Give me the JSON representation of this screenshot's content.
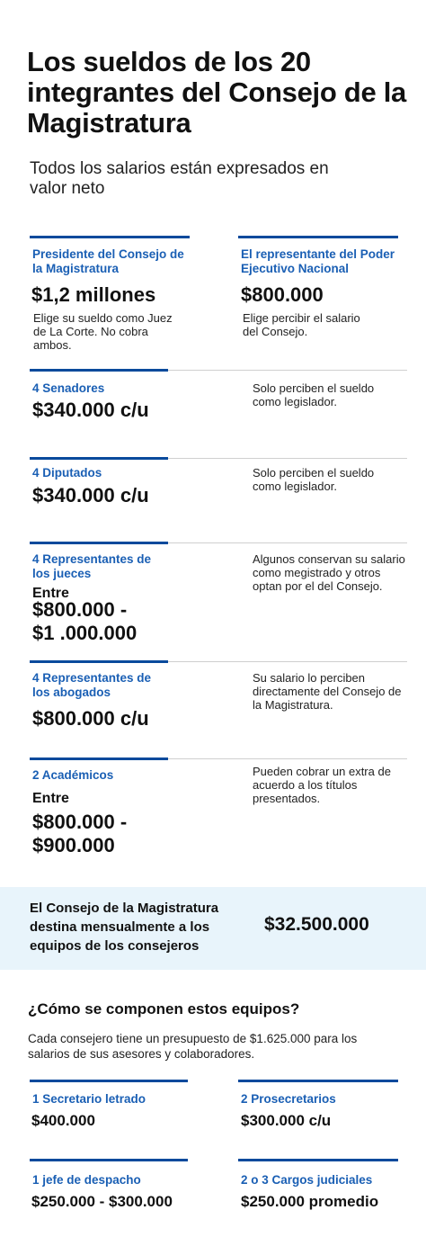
{
  "header": {
    "title": "Los sueldos de los 20 integrantes del Consejo de la Magistratura",
    "subtitle": "Todos los salarios están expresados en valor neto"
  },
  "blocks": {
    "presidente": {
      "label": "Presidente del Consejo de la Magistratura",
      "amount": "$1,2 millones",
      "note": "Elige su sueldo como Juez de La Corte. No cobra ambos."
    },
    "ejecutivo": {
      "label": "El representante del Poder Ejecutivo Nacional",
      "amount": "$800.000",
      "note": "Elige percibir el salario del Consejo."
    },
    "senadores": {
      "label": "4 Senadores",
      "amount": "$340.000 c/u",
      "note": "Solo perciben el sueldo como legislador."
    },
    "diputados": {
      "label": "4 Diputados",
      "amount": "$340.000 c/u",
      "note": "Solo perciben el sueldo como legislador."
    },
    "jueces": {
      "label": "4 Representantes de los jueces",
      "prefix": "Entre",
      "amount_line1": "$800.000 -",
      "amount_line2": "$1 .000.000",
      "note": "Algunos conservan su salario como megistrado y otros optan por el del Consejo."
    },
    "abogados": {
      "label": "4 Representantes de los abogados",
      "amount": "$800.000 c/u",
      "note": "Su salario lo perciben directamente del Consejo de la Magistratura."
    },
    "academicos": {
      "label": "2 Académicos",
      "prefix": "Entre",
      "amount_line1": "$800.000 -",
      "amount_line2": "$900.000",
      "note": "Pueden cobrar un extra de acuerdo a los títulos presentados."
    }
  },
  "band": {
    "text": "El Consejo de la Magistratura destina mensualmente a los equipos de los consejeros",
    "value": "$32.500.000"
  },
  "equipos": {
    "heading": "¿Cómo se componen estos equipos?",
    "intro": "Cada consejero tiene un presupuesto de $1.625.000 para los salarios de sus asesores y colaboradores.",
    "items": [
      {
        "label": "1 Secretario letrado",
        "amount": "$400.000"
      },
      {
        "label": "2 Prosecretarios",
        "amount": "$300.000 c/u"
      },
      {
        "label": "1 jefe de despacho",
        "amount": "$250.000 - $300.000"
      },
      {
        "label": "2 o 3 Cargos judiciales",
        "amount": "$250.000 promedio"
      }
    ]
  },
  "colors": {
    "accent_blue": "#1a5fb4",
    "line_blue": "#0a4a9c",
    "band_background": "#e8f4fb"
  }
}
